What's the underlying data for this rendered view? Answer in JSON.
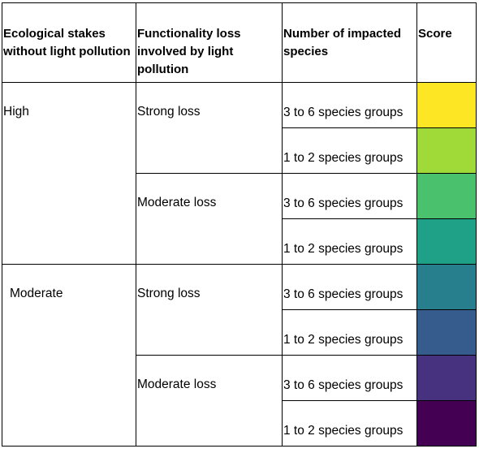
{
  "headers": [
    "Ecological stakes without light pollution",
    "Functionality loss involved by light pollution",
    "Number of impacted species",
    "Score"
  ],
  "stakes": [
    "High",
    "Moderate"
  ],
  "losses": [
    "Strong loss",
    "Moderate loss",
    "Strong loss",
    "Moderate loss"
  ],
  "species": [
    "3 to 6 species groups",
    "1 to 2 species groups",
    "3 to 6 species groups",
    "1 to 2 species groups",
    "3 to 6 species groups",
    "1 to 2 species groups",
    "3 to 6 species groups",
    "1 to 2 species groups"
  ],
  "score_colors": [
    "#fde725",
    "#a0da39",
    "#4ac16d",
    "#1fa187",
    "#277f8e",
    "#365c8d",
    "#46327e",
    "#440154"
  ]
}
